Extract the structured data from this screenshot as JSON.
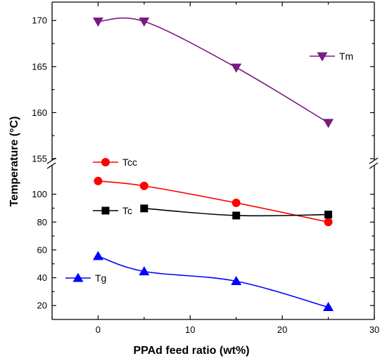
{
  "chart_data": {
    "type": "line",
    "title": "",
    "xlabel": "PPAd feed ratio (wt%)",
    "ylabel": "Temperature (°C)",
    "xlim": [
      -5,
      30
    ],
    "x_ticks": [
      0,
      10,
      20,
      30
    ],
    "axis_break": true,
    "upper_panel": {
      "ylim": [
        155,
        172
      ],
      "y_ticks": [
        155,
        160,
        165,
        170
      ]
    },
    "lower_panel": {
      "ylim": [
        10,
        120
      ],
      "y_ticks": [
        20,
        40,
        60,
        80,
        100
      ]
    },
    "grid": false,
    "x": [
      0,
      5,
      15,
      25
    ],
    "series": [
      {
        "name": "Tm",
        "panel": "upper",
        "marker": "triangle-down",
        "color": "#7b1a80",
        "values": [
          169.9,
          169.9,
          164.9,
          158.9
        ]
      },
      {
        "name": "Tcc",
        "panel": "lower",
        "marker": "circle",
        "color": "#ff0000",
        "values": [
          109.5,
          106,
          93.8,
          80
        ]
      },
      {
        "name": "Tc",
        "panel": "lower",
        "marker": "square",
        "color": "#000000",
        "values": [
          null,
          89.8,
          84.7,
          85.4
        ]
      },
      {
        "name": "Tg",
        "panel": "lower",
        "marker": "triangle-up",
        "color": "#0000ff",
        "values": [
          55.5,
          44.5,
          37.5,
          18.8
        ]
      }
    ]
  }
}
